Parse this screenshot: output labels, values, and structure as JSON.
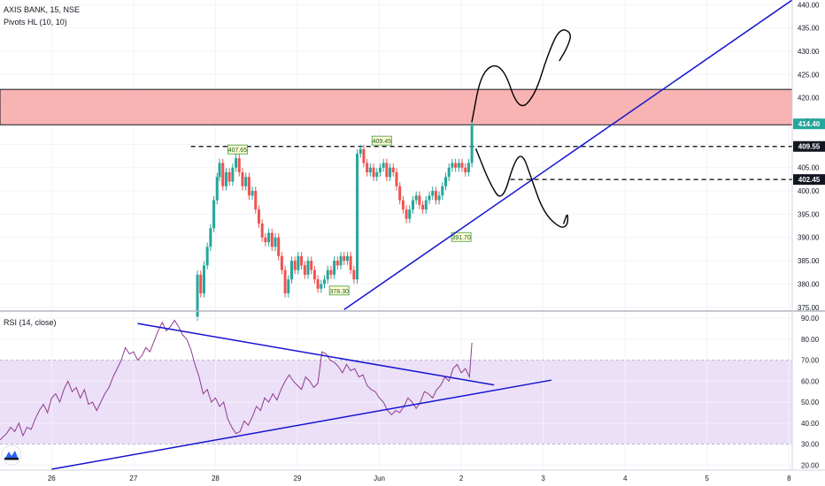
{
  "legend": {
    "symbol": "AXIS BANK, 15, NSE",
    "indicator": "Pivots HL (10, 10)",
    "rsi": "RSI (14, close)"
  },
  "colors": {
    "bull": "#26a69a",
    "bear": "#ef5350",
    "zone_fill": "#f7a6a6",
    "trendline": "#1414d0",
    "rsi_line": "#8e3c8e",
    "rsi_band": "#ecdff8",
    "drawing": "#000000",
    "price_badge": "#26a69a"
  },
  "chart_data": [
    {
      "type": "candlestick",
      "title": "AXIS BANK, 15, NSE",
      "y_axis_ticks": [
        375,
        380,
        385,
        390,
        395,
        400,
        405,
        410,
        415,
        420,
        425,
        430,
        435,
        440
      ],
      "y_axis_labels": [
        "375.00",
        "380.00",
        "385.00",
        "390.00",
        "395.00",
        "400.00",
        "405.00",
        "410.00",
        "415.00",
        "420.00",
        "425.00",
        "430.00",
        "435.00",
        "440.00"
      ],
      "ylim": [
        374.2,
        441
      ],
      "x_axis_labels": [
        "26",
        "27",
        "28",
        "29",
        "Jun",
        "2",
        "3",
        "4",
        "5",
        "8"
      ],
      "x_tick_positions": [
        0.0,
        1.0,
        2.0,
        3.0,
        4.0,
        5.0,
        6.0,
        7.0,
        8.0,
        9.0
      ],
      "xlim": [
        -0.63,
        9.04
      ],
      "resistance_zone": [
        414.2,
        421.8
      ],
      "support_levels": [
        {
          "price": 409.55,
          "label": "409.55",
          "x_start": 1.7
        },
        {
          "price": 402.45,
          "label": "402.45",
          "x_start": 5.6
        }
      ],
      "last_price": {
        "value": 414.4,
        "label": "414.40"
      },
      "pivot_labels": [
        {
          "text": "407.65",
          "x": 2.27,
          "price": 408.9
        },
        {
          "text": "409.45",
          "x": 4.03,
          "price": 410.8
        },
        {
          "text": "378.30",
          "x": 3.51,
          "price": 378.6
        },
        {
          "text": "391.70",
          "x": 5.0,
          "price": 390.1
        }
      ],
      "trendline": {
        "x": [
          3.57,
          9.04
        ],
        "y": [
          374.5,
          441
        ]
      },
      "candles_path": [
        [
          1.75,
          373
        ],
        [
          1.78,
          382
        ],
        [
          1.82,
          378
        ],
        [
          1.86,
          384
        ],
        [
          1.9,
          388
        ],
        [
          1.94,
          392
        ],
        [
          1.98,
          398
        ],
        [
          2.02,
          403
        ],
        [
          2.05,
          406
        ],
        [
          2.09,
          401
        ],
        [
          2.13,
          404
        ],
        [
          2.17,
          402
        ],
        [
          2.21,
          405
        ],
        [
          2.25,
          407
        ],
        [
          2.29,
          404
        ],
        [
          2.33,
          401
        ],
        [
          2.37,
          403
        ],
        [
          2.41,
          399
        ],
        [
          2.45,
          400
        ],
        [
          2.49,
          396
        ],
        [
          2.53,
          393
        ],
        [
          2.57,
          390
        ],
        [
          2.61,
          389
        ],
        [
          2.65,
          391
        ],
        [
          2.69,
          388
        ],
        [
          2.73,
          390
        ],
        [
          2.77,
          386
        ],
        [
          2.81,
          383
        ],
        [
          2.85,
          378
        ],
        [
          2.89,
          381
        ],
        [
          2.93,
          385
        ],
        [
          2.97,
          383
        ],
        [
          3.01,
          386
        ],
        [
          3.05,
          384
        ],
        [
          3.09,
          382
        ],
        [
          3.13,
          385
        ],
        [
          3.17,
          383
        ],
        [
          3.21,
          381
        ],
        [
          3.25,
          379
        ],
        [
          3.29,
          380
        ],
        [
          3.33,
          381
        ],
        [
          3.37,
          383
        ],
        [
          3.41,
          382
        ],
        [
          3.45,
          385
        ],
        [
          3.49,
          384
        ],
        [
          3.53,
          386
        ],
        [
          3.57,
          385
        ],
        [
          3.61,
          386
        ],
        [
          3.65,
          383
        ],
        [
          3.69,
          381
        ],
        [
          3.73,
          408
        ],
        [
          3.77,
          409
        ],
        [
          3.81,
          406
        ],
        [
          3.85,
          404
        ],
        [
          3.89,
          405
        ],
        [
          3.93,
          403
        ],
        [
          3.97,
          404
        ],
        [
          4.01,
          405
        ],
        [
          4.05,
          406
        ],
        [
          4.09,
          403
        ],
        [
          4.13,
          405
        ],
        [
          4.17,
          404
        ],
        [
          4.21,
          401
        ],
        [
          4.25,
          398
        ],
        [
          4.29,
          396
        ],
        [
          4.33,
          394
        ],
        [
          4.37,
          396
        ],
        [
          4.41,
          398
        ],
        [
          4.45,
          399
        ],
        [
          4.49,
          397
        ],
        [
          4.53,
          396
        ],
        [
          4.57,
          398
        ],
        [
          4.61,
          399
        ],
        [
          4.65,
          400
        ],
        [
          4.69,
          398
        ],
        [
          4.73,
          399
        ],
        [
          4.77,
          401
        ],
        [
          4.81,
          403
        ],
        [
          4.85,
          405
        ],
        [
          4.89,
          406
        ],
        [
          4.93,
          405
        ],
        [
          4.97,
          406
        ],
        [
          5.01,
          405
        ],
        [
          5.05,
          404
        ],
        [
          5.09,
          406
        ],
        [
          5.13,
          414.4
        ]
      ]
    },
    {
      "type": "line",
      "title": "RSI (14, close)",
      "y_axis_ticks": [
        20,
        30,
        40,
        50,
        60,
        70,
        80,
        90
      ],
      "y_axis_labels": [
        "20.00",
        "30.00",
        "40.00",
        "50.00",
        "60.00",
        "70.00",
        "80.00",
        "90.00"
      ],
      "ylim": [
        17.6,
        92.6
      ],
      "band": [
        30,
        70
      ],
      "x_axis_labels": [
        "26",
        "27",
        "28",
        "29",
        "Jun",
        "2",
        "3",
        "4",
        "5",
        "8"
      ],
      "xlim": [
        -0.63,
        9.04
      ],
      "series": [
        {
          "x": [
            -0.63,
            -0.55,
            -0.5,
            -0.45,
            -0.4,
            -0.35,
            -0.3,
            -0.25,
            -0.2,
            -0.15,
            -0.1,
            -0.05,
            0.0,
            0.05,
            0.1,
            0.15,
            0.2,
            0.25,
            0.3,
            0.35,
            0.4,
            0.45,
            0.5,
            0.55,
            0.6,
            0.65,
            0.7,
            0.75,
            0.8,
            0.85,
            0.9,
            0.95,
            1.0,
            1.05,
            1.1,
            1.15,
            1.2,
            1.25,
            1.3,
            1.35,
            1.4,
            1.45,
            1.5,
            1.55,
            1.6,
            1.65,
            1.7,
            1.75,
            1.8,
            1.85,
            1.9,
            1.95,
            2.0,
            2.05,
            2.1,
            2.15,
            2.2,
            2.25,
            2.3,
            2.35,
            2.4,
            2.45,
            2.5,
            2.55,
            2.6,
            2.65,
            2.7,
            2.75,
            2.8,
            2.85,
            2.9,
            2.95,
            3.0,
            3.05,
            3.1,
            3.15,
            3.2,
            3.25,
            3.3,
            3.35,
            3.4,
            3.45,
            3.5,
            3.55,
            3.6,
            3.65,
            3.7,
            3.75,
            3.8,
            3.85,
            3.9,
            3.95,
            4.0,
            4.05,
            4.1,
            4.15,
            4.2,
            4.25,
            4.3,
            4.35,
            4.4,
            4.45,
            4.5,
            4.55,
            4.6,
            4.65,
            4.7,
            4.75,
            4.8,
            4.85,
            4.9,
            4.95,
            5.0,
            5.05,
            5.1,
            5.13
          ],
          "values": [
            32,
            35,
            38,
            36,
            40,
            34,
            38,
            37,
            42,
            46,
            49,
            45,
            52,
            54,
            50,
            56,
            60,
            55,
            57,
            52,
            56,
            49,
            50,
            46,
            50,
            54,
            57,
            62,
            66,
            70,
            76,
            73,
            74,
            70,
            72,
            76,
            74,
            79,
            84,
            88,
            84,
            86,
            89,
            86,
            82,
            80,
            75,
            68,
            62,
            54,
            56,
            50,
            52,
            48,
            50,
            42,
            38,
            35,
            36,
            41,
            39,
            43,
            48,
            46,
            52,
            50,
            54,
            51,
            56,
            60,
            63,
            60,
            58,
            56,
            62,
            60,
            57,
            59,
            74,
            73,
            70,
            69,
            67,
            64,
            68,
            65,
            66,
            62,
            63,
            58,
            56,
            55,
            52,
            50,
            46,
            44,
            46,
            45,
            48,
            52,
            50,
            47,
            50,
            55,
            54,
            52,
            56,
            58,
            62,
            60,
            66,
            68,
            64,
            66,
            62,
            78.3
          ]
        }
      ],
      "triangle_upper": {
        "x": [
          1.05,
          5.4
        ],
        "y": [
          87.5,
          58.2
        ]
      },
      "triangle_lower": {
        "x": [
          0.0,
          6.1
        ],
        "y": [
          18.0,
          60.5
        ]
      }
    }
  ],
  "drawings": {
    "up_scenario": [
      [
        5.13,
        414.9
      ],
      [
        5.25,
        426
      ],
      [
        5.5,
        427.5
      ],
      [
        5.7,
        417
      ],
      [
        5.9,
        420.5
      ],
      [
        6.05,
        429
      ],
      [
        6.2,
        435
      ],
      [
        6.35,
        434
      ],
      [
        6.3,
        431
      ],
      [
        6.2,
        428
      ]
    ],
    "down_scenario": [
      [
        5.18,
        409
      ],
      [
        5.35,
        401.5
      ],
      [
        5.5,
        397.5
      ],
      [
        5.65,
        406.5
      ],
      [
        5.75,
        408
      ],
      [
        5.85,
        403
      ],
      [
        6.0,
        395.5
      ],
      [
        6.2,
        392
      ],
      [
        6.3,
        392.5
      ],
      [
        6.3,
        395.5
      ],
      [
        6.25,
        393
      ]
    ]
  },
  "icons": {
    "brand": "tradingview-logo-icon"
  }
}
